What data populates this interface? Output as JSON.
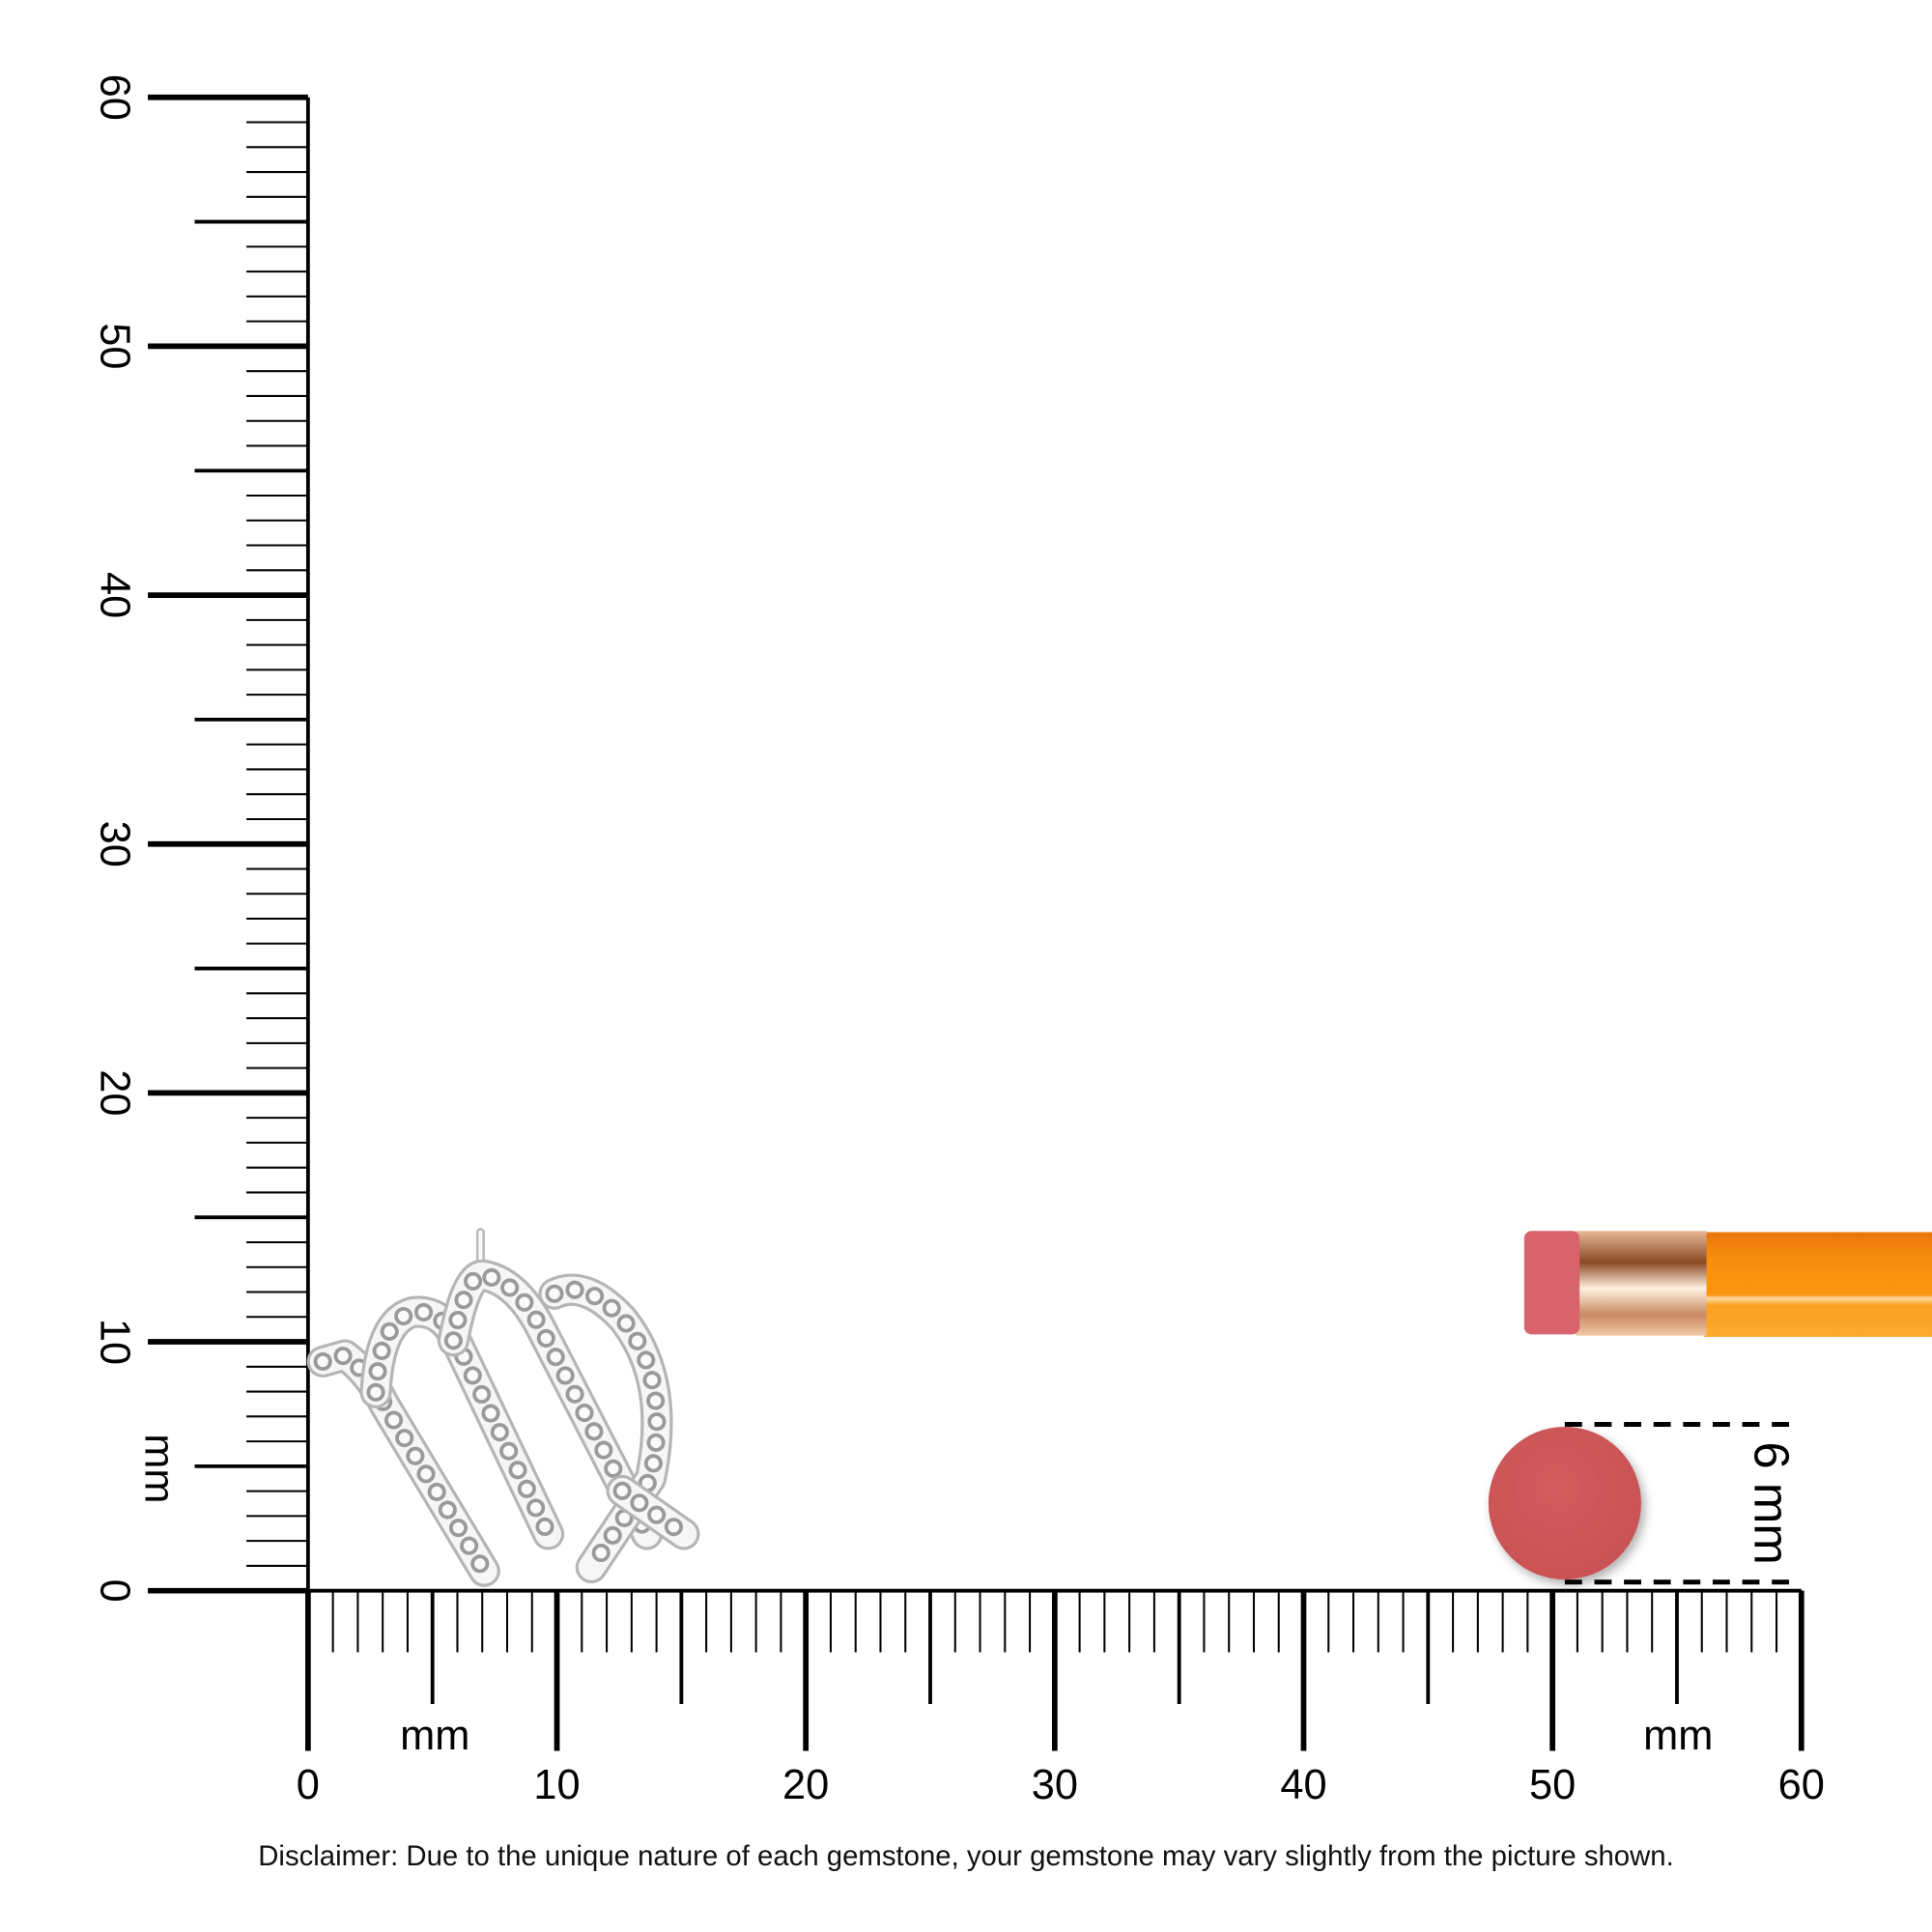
{
  "ruler": {
    "unit_label": "mm",
    "horizontal_ticks": [
      "0",
      "10",
      "20",
      "30",
      "40",
      "50",
      "60"
    ],
    "vertical_ticks": [
      "0",
      "10",
      "20",
      "30",
      "40",
      "50",
      "60"
    ],
    "range_mm": [
      0,
      60
    ]
  },
  "reference_object": {
    "dimension_label": "6 mm",
    "diameter_mm": 6,
    "color": "#d05a5a"
  },
  "product": {
    "shape": "virgo-zodiac-pendant",
    "metal_color": "#c8c8c8"
  },
  "pencil": {
    "eraser_color": "#d8636a",
    "ferrule_color": "#d9a98a",
    "body_color": "#f7900e"
  },
  "disclaimer": "Disclaimer: Due to the unique nature of each gemstone, your gemstone may vary slightly from the picture shown."
}
